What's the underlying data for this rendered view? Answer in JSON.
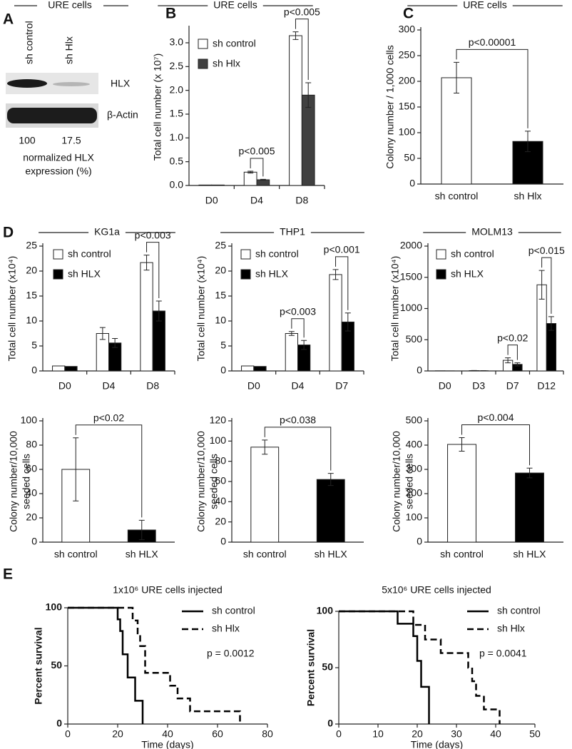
{
  "panel_labels": [
    "A",
    "B",
    "C",
    "D",
    "E"
  ],
  "blot": {
    "title": "URE cells",
    "lanes": [
      "sh control",
      "sh Hlx"
    ],
    "bands": [
      "HLX",
      "β-Actin"
    ],
    "quantification": [
      100,
      17.5
    ],
    "quantification_label": [
      "normalized HLX",
      "expression (%)"
    ]
  },
  "chart_data": [
    {
      "type": "grouped_bar",
      "title": "URE cells",
      "y_label": "Total cell number (x 10⁷)",
      "categories": [
        "D0",
        "D4",
        "D8"
      ],
      "series": [
        {
          "name": "sh control",
          "color": "#ffffff",
          "values": [
            0.01,
            0.28,
            3.15
          ],
          "errors": [
            0,
            0.02,
            0.08
          ]
        },
        {
          "name": "sh Hlx",
          "color": "#404040",
          "values": [
            0.01,
            0.12,
            1.9
          ],
          "errors": [
            0,
            0.01,
            0.26
          ]
        }
      ],
      "ylim": [
        0,
        3.3
      ],
      "yticks": [
        {
          "value": 0,
          "label": "0.0"
        },
        0.5,
        {
          "value": 1,
          "label": "1.0"
        },
        1.5,
        {
          "value": 2,
          "label": "2.0"
        },
        2.5,
        {
          "value": 3,
          "label": "3.0"
        }
      ],
      "legend": "upper left",
      "annotations": [
        "p<0.005",
        "p<0.005"
      ]
    },
    {
      "type": "bar",
      "title": "URE cells",
      "y_label": "Colony number / 1,000 cells",
      "categories": [
        "sh control",
        "sh Hlx"
      ],
      "values": [
        207,
        83
      ],
      "errors": [
        30,
        20
      ],
      "colors": [
        "#ffffff",
        "#000000"
      ],
      "ylim": [
        0,
        300
      ],
      "yticks": [
        0,
        50,
        100,
        150,
        200,
        250,
        300
      ],
      "annotations": [
        "p<0.00001"
      ]
    },
    {
      "type": "grouped_bar",
      "title": "KG1a",
      "y_label": "Total cell number (x10⁴)",
      "categories": [
        "D0",
        "D4",
        "D8"
      ],
      "series": [
        {
          "name": "sh control",
          "color": "#ffffff",
          "values": [
            1,
            7.5,
            21.7
          ],
          "errors": [
            0,
            1.2,
            1.5
          ]
        },
        {
          "name": "sh HLX",
          "color": "#000000",
          "values": [
            0.9,
            5.6,
            12
          ],
          "errors": [
            0,
            0.9,
            2
          ]
        }
      ],
      "ylim": [
        0,
        25
      ],
      "yticks": [
        0,
        5,
        10,
        15,
        20,
        25
      ],
      "legend": "upper left",
      "annotations": [
        "p<0.003"
      ]
    },
    {
      "type": "grouped_bar",
      "title": "THP1",
      "y_label": "Total cell number (x10⁴)",
      "categories": [
        "D0",
        "D4",
        "D7"
      ],
      "series": [
        {
          "name": "sh control",
          "color": "#ffffff",
          "values": [
            1,
            7.5,
            19.3
          ],
          "errors": [
            0,
            0.4,
            1
          ]
        },
        {
          "name": "sh HLX",
          "color": "#000000",
          "values": [
            0.9,
            5.2,
            9.8
          ],
          "errors": [
            0,
            0.9,
            1.8
          ]
        }
      ],
      "ylim": [
        0,
        25
      ],
      "yticks": [
        0,
        5,
        10,
        15,
        20,
        25
      ],
      "legend": "upper left",
      "annotations": [
        "p<0.003",
        "p<0.001"
      ]
    },
    {
      "type": "grouped_bar",
      "title": "MOLM13",
      "y_label": "Total cell number (x10⁴)",
      "categories": [
        "D0",
        "D3",
        "D7",
        "D12"
      ],
      "series": [
        {
          "name": "sh control",
          "color": "#ffffff",
          "values": [
            2,
            5,
            170,
            1380
          ],
          "errors": [
            0,
            2,
            40,
            230
          ]
        },
        {
          "name": "sh HLX",
          "color": "#000000",
          "values": [
            1,
            3,
            105,
            760
          ],
          "errors": [
            0,
            1,
            25,
            110
          ]
        }
      ],
      "ylim": [
        0,
        2000
      ],
      "yticks": [
        0,
        500,
        1000,
        1500,
        2000
      ],
      "legend": "upper left",
      "annotations": [
        "p<0.02",
        "p<0.015"
      ]
    },
    {
      "type": "bar",
      "y_label": [
        "Colony number/10,000",
        "seeded cells"
      ],
      "categories": [
        "sh control",
        "sh HLX"
      ],
      "values": [
        60,
        10
      ],
      "errors": [
        26,
        8
      ],
      "colors": [
        "#ffffff",
        "#000000"
      ],
      "ylim": [
        0,
        100
      ],
      "yticks": [
        0,
        20,
        40,
        60,
        80,
        100
      ],
      "annotations": [
        "p<0.02"
      ]
    },
    {
      "type": "bar",
      "y_label": [
        "Colony number/10,000",
        "seeded cells"
      ],
      "categories": [
        "sh control",
        "sh HLX"
      ],
      "values": [
        94,
        62
      ],
      "errors": [
        7,
        6
      ],
      "colors": [
        "#ffffff",
        "#000000"
      ],
      "ylim": [
        0,
        120
      ],
      "yticks": [
        0,
        20,
        40,
        60,
        80,
        100,
        120
      ],
      "annotations": [
        "p<0.038"
      ]
    },
    {
      "type": "bar",
      "y_label": [
        "Colony number/10,000",
        "seeded cells"
      ],
      "categories": [
        "sh control",
        "sh HLX"
      ],
      "values": [
        403,
        285
      ],
      "errors": [
        28,
        20
      ],
      "colors": [
        "#ffffff",
        "#000000"
      ],
      "ylim": [
        0,
        500
      ],
      "yticks": [
        0,
        100,
        200,
        300,
        400,
        500
      ],
      "annotations": [
        "p<0.004"
      ]
    },
    {
      "type": "line",
      "step": true,
      "title": "1x10⁶ URE cells injected",
      "x_label": "Time (days)",
      "y_label": "Percent survival",
      "series": [
        {
          "name": "sh control",
          "color": "#000000",
          "line_style": "solid",
          "x": [
            0,
            20,
            21,
            22,
            24,
            27,
            30
          ],
          "values": [
            100,
            90,
            80,
            60,
            40,
            20,
            0
          ]
        },
        {
          "name": "sh Hlx",
          "color": "#000000",
          "line_style": "dashed",
          "x": [
            0,
            26,
            28,
            29,
            31,
            41,
            44,
            49,
            69
          ],
          "values": [
            100,
            89,
            78,
            67,
            44,
            33,
            22,
            11,
            0
          ]
        }
      ],
      "xlim": [
        0,
        80
      ],
      "xticks": [
        0,
        20,
        40,
        60,
        80
      ],
      "ylim": [
        0,
        100
      ],
      "yticks": [
        0,
        50,
        100
      ],
      "legend": "upper right",
      "annotations": [
        "p = 0.0012"
      ]
    },
    {
      "type": "line",
      "step": true,
      "title": "5x10⁶ URE cells injected",
      "x_label": "Time (days)",
      "y_label": "Percent survival",
      "series": [
        {
          "name": "sh control",
          "color": "#000000",
          "line_style": "solid",
          "x": [
            0,
            15,
            19,
            20,
            21,
            23
          ],
          "values": [
            100,
            89,
            78,
            56,
            33,
            0
          ]
        },
        {
          "name": "sh Hlx",
          "color": "#000000",
          "line_style": "dashed",
          "x": [
            0,
            19,
            22,
            26,
            33,
            34,
            35,
            37,
            41
          ],
          "values": [
            100,
            88,
            75,
            63,
            50,
            38,
            25,
            13,
            0
          ]
        }
      ],
      "xlim": [
        0,
        50
      ],
      "xticks": [
        0,
        10,
        20,
        30,
        40,
        50
      ],
      "ylim": [
        0,
        100
      ],
      "yticks": [
        0,
        50,
        100
      ],
      "legend": "upper right",
      "annotations": [
        "p = 0.0041"
      ]
    }
  ]
}
